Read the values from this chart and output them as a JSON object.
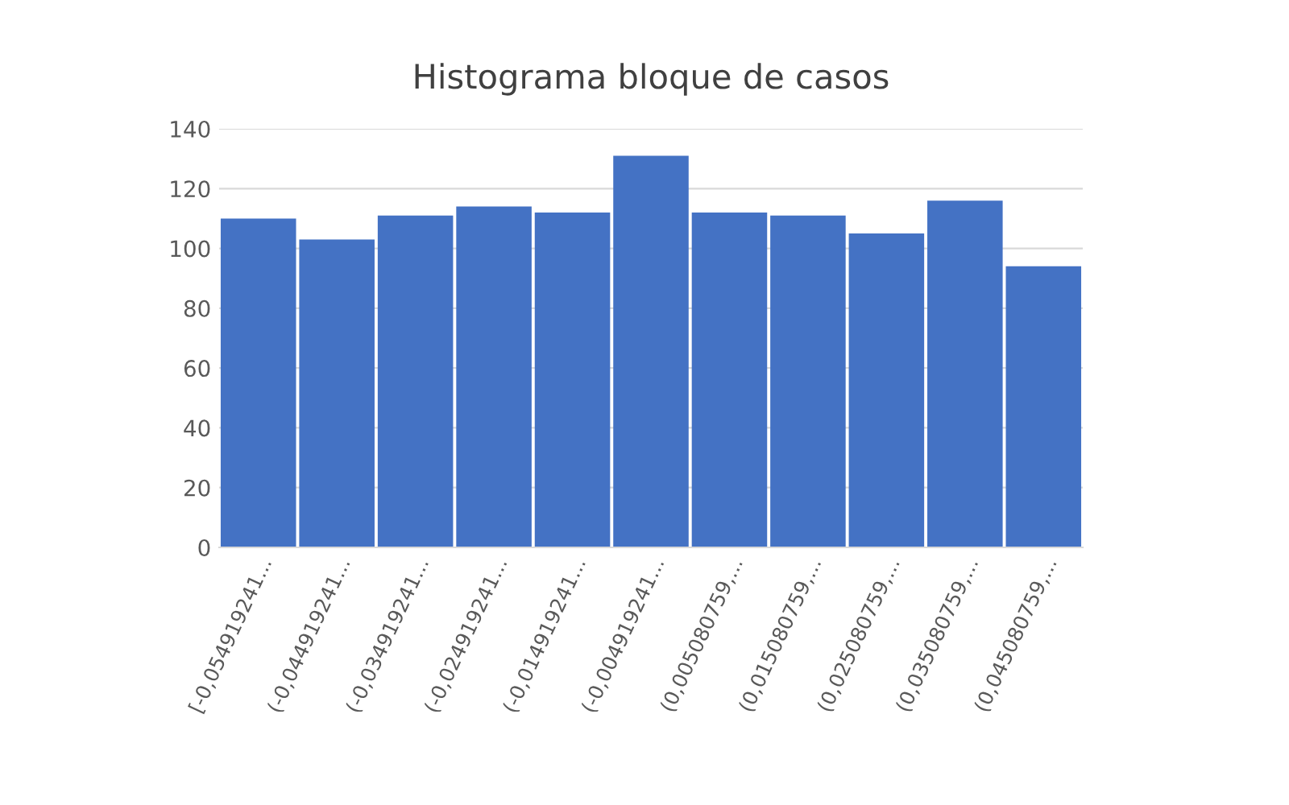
{
  "chart_data": {
    "type": "bar",
    "title": "Histograma bloque de casos",
    "categories": [
      "[-0,054919241...",
      "(-0,044919241...",
      "(-0,034919241...",
      "(-0,024919241...",
      "(-0,014919241...",
      "(-0,004919241...",
      "(0,005080759,...",
      "(0,015080759,...",
      "(0,025080759,...",
      "(0,035080759,...",
      "(0,045080759,..."
    ],
    "values": [
      110,
      103,
      111,
      114,
      112,
      131,
      112,
      111,
      105,
      116,
      94
    ],
    "color": "#4472c4",
    "ylim": [
      0,
      140
    ],
    "yticks": [
      0,
      20,
      40,
      60,
      80,
      100,
      120,
      140
    ],
    "grid": "y"
  }
}
